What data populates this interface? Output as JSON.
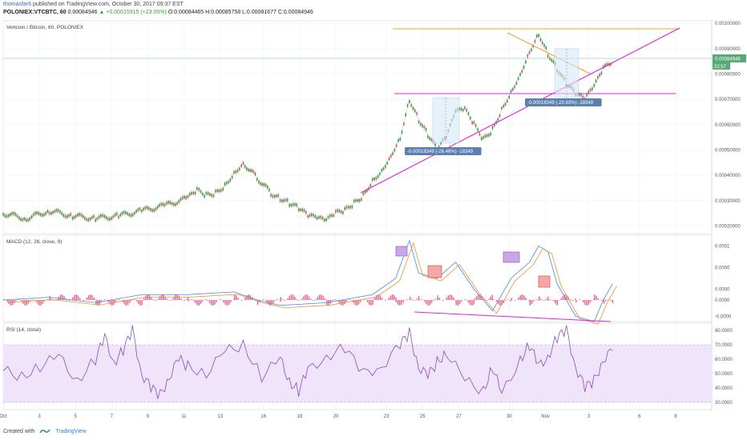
{
  "header": {
    "username": "thomasfar6",
    "published": " published on TradingView.com, October 30, 2017 09:37 EST",
    "symbol": "POLONIEX:VTCBTC, 60",
    "last": "0.00084946",
    "change": "+0.00015915 (+23.05%)",
    "open": "O:0.00084465",
    "high": "H:0.00085758",
    "low": "L:0.00081677",
    "close": "C:0.00084946"
  },
  "footer": {
    "created_with": "Created with",
    "brand": "TradingView"
  },
  "colors": {
    "magenta": "#e020e0",
    "orange": "#f0a020",
    "up": "#3a9c3a",
    "down": "#e04c6c",
    "rsi_line": "#8a4abf",
    "rsi_band": "#f0e4fa",
    "macd_line": "#3c8fdc",
    "signal_line": "#f0902a",
    "hist": "#e8336e"
  },
  "chart_data": [
    {
      "type": "line",
      "title": "Vertcoin / Bitcoin, 60, POLONIEX",
      "y_tick_labels": [
        "0.00100000",
        "0.00090000",
        "0.00080000",
        "0.00070000",
        "0.00060000",
        "0.00050000",
        "0.00040000",
        "0.00030000",
        "0.00020000"
      ],
      "ylim": [
        0.00017,
        0.00101
      ],
      "last_price_label": "0.00084946",
      "countdown_label": "22:57",
      "x_tick_labels": [
        "Oct",
        "3",
        "5",
        "7",
        "9",
        "11",
        "13",
        "16",
        "18",
        "20",
        "23",
        "25",
        "27",
        "30",
        "Nov",
        "3",
        "6",
        "8"
      ],
      "series": [
        {
          "x": [
            0,
            5,
            10,
            15,
            20,
            25,
            30,
            35,
            40,
            42,
            44,
            46,
            48,
            50,
            52,
            55,
            58,
            60,
            62,
            64,
            66,
            68,
            70,
            72,
            74,
            76,
            78,
            80,
            82,
            84,
            86,
            88,
            90,
            92,
            94,
            96,
            98,
            100,
            102,
            104,
            106,
            108,
            110,
            112,
            114,
            116,
            118,
            120,
            122,
            124,
            126,
            128,
            130,
            132
          ],
          "values": [
            0.00025,
            0.00023,
            0.00026,
            0.00024,
            0.00023,
            0.00024,
            0.00026,
            0.00028,
            0.00031,
            0.00034,
            0.00032,
            0.00033,
            0.00036,
            0.00041,
            0.00045,
            0.00039,
            0.00033,
            0.00031,
            0.00029,
            0.00027,
            0.00024,
            0.00023,
            0.00022,
            0.00025,
            0.00026,
            0.00029,
            0.00032,
            0.00038,
            0.00042,
            0.00048,
            0.00055,
            0.0007,
            0.00062,
            0.00056,
            0.0005,
            0.00055,
            0.00065,
            0.00066,
            0.0006,
            0.00054,
            0.00058,
            0.00066,
            0.00073,
            0.0008,
            0.00089,
            0.00096,
            0.00088,
            0.00082,
            0.00076,
            0.00072,
            0.0007,
            0.00075,
            0.00082,
            0.00085
          ]
        }
      ],
      "annotations": [
        "-0.00018349 (-26.48%) -18349",
        "-0.00018349 (-20.63%) -18349"
      ]
    },
    {
      "type": "line",
      "title": "MACD (12, 26, close, 9)",
      "y_tick_labels": [
        "0.0001",
        "0.0000",
        "0.0000",
        "0.0000",
        "-0.0000"
      ],
      "ylim": [
        -4e-05,
        0.00012
      ],
      "series": [
        {
          "x": [
            0,
            10,
            20,
            30,
            40,
            50,
            55,
            60,
            70,
            80,
            85,
            88,
            90,
            94,
            98,
            102,
            106,
            110,
            114,
            116,
            118,
            120,
            124,
            128,
            130,
            132
          ],
          "values": [
            0.0,
            5e-06,
            -5e-06,
            1e-05,
            1e-05,
            1.5e-05,
            0.0,
            -1e-05,
            -5e-06,
            1e-05,
            4e-05,
            0.00011,
            5e-05,
            4e-05,
            7e-05,
            2e-05,
            -2e-05,
            4e-05,
            7e-05,
            0.0001,
            9e-05,
            3e-05,
            -3e-05,
            -4e-05,
            0.0,
            3e-05
          ]
        }
      ]
    },
    {
      "type": "line",
      "title": "RSI (14, close)",
      "y_tick_labels": [
        "80.0000",
        "70.0000",
        "60.0000",
        "50.0000",
        "40.0000",
        "30.0000"
      ],
      "ylim": [
        25,
        85
      ],
      "band": [
        30,
        70
      ],
      "series": [
        {
          "x": [
            0,
            4,
            8,
            12,
            16,
            20,
            22,
            24,
            26,
            28,
            30,
            32,
            34,
            36,
            38,
            40,
            44,
            48,
            52,
            56,
            60,
            62,
            64,
            66,
            70,
            74,
            78,
            82,
            86,
            88,
            90,
            92,
            94,
            96,
            100,
            104,
            106,
            108,
            112,
            114,
            116,
            118,
            120,
            122,
            124,
            126,
            128,
            130,
            132
          ],
          "values": [
            52,
            48,
            55,
            62,
            45,
            60,
            75,
            58,
            66,
            80,
            50,
            40,
            35,
            48,
            60,
            55,
            50,
            65,
            70,
            48,
            60,
            45,
            38,
            52,
            62,
            68,
            50,
            55,
            70,
            78,
            55,
            48,
            58,
            65,
            45,
            38,
            55,
            35,
            60,
            70,
            55,
            62,
            75,
            80,
            55,
            40,
            45,
            60,
            66
          ]
        }
      ]
    }
  ]
}
